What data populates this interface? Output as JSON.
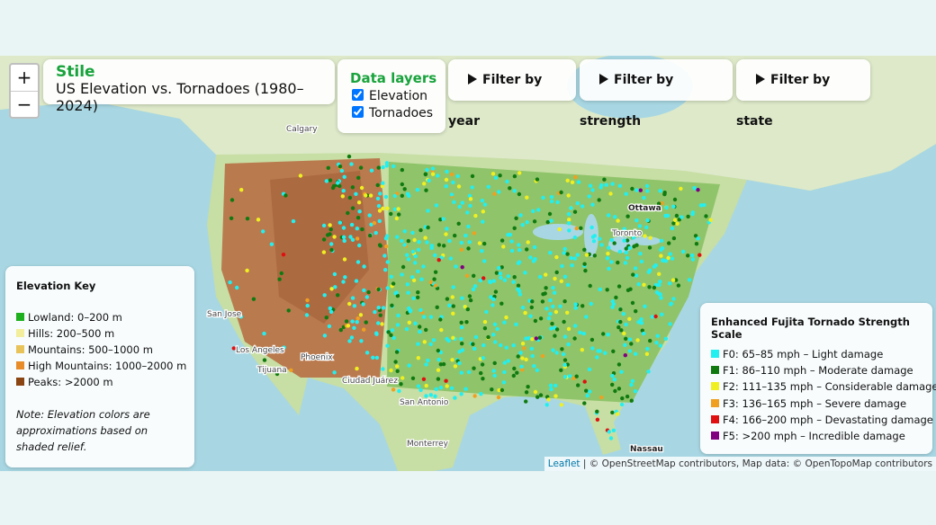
{
  "zoom": {
    "in": "+",
    "out": "−"
  },
  "header": {
    "brand": "Stile",
    "title": "US Elevation vs. Tornadoes (1980–2024)"
  },
  "layers": {
    "title": "Data layers",
    "items": [
      {
        "label": "Elevation",
        "checked": true
      },
      {
        "label": "Tornadoes",
        "checked": true
      }
    ]
  },
  "filters": [
    "Filter by year",
    "Filter by strength",
    "Filter by state"
  ],
  "elevation_key": {
    "title": "Elevation Key",
    "items": [
      {
        "label": "Lowland: 0–200 m",
        "color": "#1fb01f"
      },
      {
        "label": "Hills: 200–500 m",
        "color": "#f2ee9c"
      },
      {
        "label": "Mountains: 500–1000 m",
        "color": "#e8c35a"
      },
      {
        "label": "High Mountains: 1000–2000 m",
        "color": "#e88c2a"
      },
      {
        "label": "Peaks: >2000 m",
        "color": "#8b4513"
      }
    ],
    "note": "Note: Elevation colors are approximations based on shaded relief."
  },
  "strength_scale": {
    "title": "Enhanced Fujita Tornado Strength Scale",
    "items": [
      {
        "label": "F0: 65–85 mph – Light damage",
        "color": "#22f0f0"
      },
      {
        "label": "F1: 86–110 mph – Moderate damage",
        "color": "#107a10"
      },
      {
        "label": "F2: 111–135 mph – Considerable damage",
        "color": "#f0f020"
      },
      {
        "label": "F3: 136–165 mph – Severe damage",
        "color": "#f0a020"
      },
      {
        "label": "F4: 166–200 mph – Devastating damage",
        "color": "#e01010"
      },
      {
        "label": "F5: >200 mph – Incredible damage",
        "color": "#800080"
      }
    ]
  },
  "attribution": {
    "link": "Leaflet",
    "text": "| © OpenStreetMap contributors, Map data: © OpenTopoMap contributors"
  },
  "map_labels": [
    "Calgary",
    "Ottawa",
    "Toronto",
    "San Jose",
    "Los Angeles",
    "Phoenix",
    "Tijuana",
    "Ciudad Juárez",
    "San Antonio",
    "Monterrey",
    "Nassau"
  ]
}
